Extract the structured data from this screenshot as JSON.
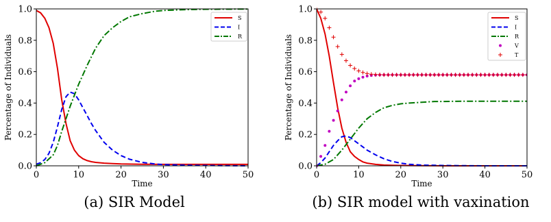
{
  "chart_data": [
    {
      "type": "line",
      "caption": "(a) SIR Model",
      "xlabel": "Time",
      "ylabel": "Percentage of Individuals",
      "xlim": [
        0,
        50
      ],
      "ylim": [
        0,
        1
      ],
      "xticks": [
        "0",
        "10",
        "20",
        "30",
        "40",
        "50"
      ],
      "yticks": [
        "0.0",
        "0.2",
        "0.4",
        "0.6",
        "0.8",
        "1.0"
      ],
      "legend_position": "top-right",
      "series": [
        {
          "name": "S",
          "color": "#e00000",
          "style": "solid",
          "x": [
            0,
            1,
            2,
            3,
            4,
            5,
            6,
            7,
            8,
            9,
            10,
            11,
            12,
            13,
            14,
            16,
            18,
            20,
            25,
            30,
            40,
            50
          ],
          "y": [
            0.99,
            0.975,
            0.94,
            0.88,
            0.78,
            0.62,
            0.42,
            0.27,
            0.16,
            0.1,
            0.065,
            0.045,
            0.033,
            0.026,
            0.022,
            0.017,
            0.014,
            0.012,
            0.01,
            0.009,
            0.009,
            0.009
          ]
        },
        {
          "name": "I",
          "color": "#0000ee",
          "style": "dashed",
          "x": [
            0,
            1,
            2,
            3,
            4,
            5,
            6,
            7,
            8,
            9,
            10,
            11,
            12,
            13,
            14,
            16,
            18,
            20,
            22,
            25,
            28,
            30,
            35,
            40,
            50
          ],
          "y": [
            0.01,
            0.02,
            0.04,
            0.08,
            0.15,
            0.25,
            0.36,
            0.44,
            0.47,
            0.46,
            0.42,
            0.37,
            0.32,
            0.27,
            0.225,
            0.15,
            0.1,
            0.065,
            0.042,
            0.022,
            0.012,
            0.008,
            0.004,
            0.002,
            0.0
          ]
        },
        {
          "name": "R",
          "color": "#007700",
          "style": "dashdot",
          "x": [
            0,
            2,
            4,
            5,
            6,
            7,
            8,
            9,
            10,
            12,
            14,
            16,
            18,
            20,
            22,
            25,
            28,
            30,
            35,
            40,
            50
          ],
          "y": [
            0.0,
            0.02,
            0.07,
            0.13,
            0.22,
            0.3,
            0.38,
            0.45,
            0.52,
            0.64,
            0.75,
            0.83,
            0.88,
            0.92,
            0.95,
            0.97,
            0.985,
            0.99,
            0.995,
            0.998,
            0.999
          ]
        }
      ]
    },
    {
      "type": "line",
      "caption": "(b) SIR model with vaxination",
      "xlabel": "Time",
      "ylabel": "Percentage of Individuals",
      "xlim": [
        0,
        50
      ],
      "ylim": [
        0,
        1
      ],
      "xticks": [
        "0",
        "10",
        "20",
        "30",
        "40",
        "50"
      ],
      "yticks": [
        "0.0",
        "0.2",
        "0.4",
        "0.6",
        "0.8",
        "1.0"
      ],
      "legend_position": "top-right",
      "series": [
        {
          "name": "S",
          "color": "#e00000",
          "style": "solid",
          "x": [
            0,
            1,
            2,
            3,
            4,
            5,
            6,
            7,
            8,
            9,
            10,
            11,
            12,
            14,
            16,
            18,
            20,
            25,
            30,
            40,
            50
          ],
          "y": [
            1.0,
            0.94,
            0.84,
            0.7,
            0.53,
            0.37,
            0.24,
            0.15,
            0.09,
            0.06,
            0.04,
            0.025,
            0.017,
            0.009,
            0.005,
            0.003,
            0.002,
            0.001,
            0.0,
            0.0,
            0.0
          ]
        },
        {
          "name": "I",
          "color": "#0000ee",
          "style": "dashed",
          "x": [
            0,
            1,
            2,
            3,
            4,
            5,
            6,
            7,
            8,
            9,
            10,
            12,
            14,
            16,
            18,
            20,
            22,
            25,
            30,
            40,
            50
          ],
          "y": [
            0.0,
            0.02,
            0.05,
            0.09,
            0.13,
            0.16,
            0.185,
            0.19,
            0.18,
            0.16,
            0.14,
            0.1,
            0.07,
            0.045,
            0.028,
            0.017,
            0.01,
            0.005,
            0.002,
            0.0,
            0.0
          ]
        },
        {
          "name": "R",
          "color": "#007700",
          "style": "dashdot",
          "x": [
            0,
            2,
            4,
            6,
            8,
            10,
            12,
            14,
            16,
            18,
            20,
            22,
            25,
            28,
            30,
            35,
            40,
            50
          ],
          "y": [
            0.0,
            0.01,
            0.04,
            0.1,
            0.17,
            0.24,
            0.3,
            0.34,
            0.37,
            0.385,
            0.395,
            0.4,
            0.405,
            0.41,
            0.41,
            0.412,
            0.412,
            0.412
          ]
        },
        {
          "name": "V",
          "color": "#c000c0",
          "style": "dots",
          "x": [
            0,
            1,
            2,
            3,
            4,
            5,
            6,
            7,
            8,
            9,
            10,
            11,
            12,
            13,
            14,
            15,
            16,
            17,
            18,
            19,
            20,
            21,
            22,
            23,
            24,
            25,
            26,
            27,
            28,
            29,
            30,
            31,
            32,
            33,
            34,
            35,
            36,
            37,
            38,
            39,
            40,
            41,
            42,
            43,
            44,
            45,
            46,
            47,
            48,
            49,
            50
          ],
          "y": [
            0.0,
            0.06,
            0.13,
            0.22,
            0.29,
            0.35,
            0.42,
            0.47,
            0.51,
            0.54,
            0.555,
            0.565,
            0.572,
            0.576,
            0.578,
            0.579,
            0.58,
            0.58,
            0.58,
            0.58,
            0.58,
            0.58,
            0.58,
            0.58,
            0.58,
            0.58,
            0.58,
            0.58,
            0.58,
            0.58,
            0.58,
            0.58,
            0.58,
            0.58,
            0.58,
            0.58,
            0.58,
            0.58,
            0.58,
            0.58,
            0.58,
            0.58,
            0.58,
            0.58,
            0.58,
            0.58,
            0.58,
            0.58,
            0.58,
            0.58,
            0.58
          ]
        },
        {
          "name": "T",
          "color": "#e00000",
          "style": "plus",
          "x": [
            0,
            1,
            2,
            3,
            4,
            5,
            6,
            7,
            8,
            9,
            10,
            11,
            12,
            13,
            14,
            15,
            16,
            17,
            18,
            19,
            20,
            21,
            22,
            23,
            24,
            25,
            26,
            27,
            28,
            29,
            30,
            31,
            32,
            33,
            34,
            35,
            36,
            37,
            38,
            39,
            40,
            41,
            42,
            43,
            44,
            45,
            46,
            47,
            48,
            49,
            50
          ],
          "y": [
            1.0,
            0.98,
            0.94,
            0.88,
            0.82,
            0.76,
            0.71,
            0.67,
            0.64,
            0.62,
            0.605,
            0.595,
            0.588,
            0.584,
            0.582,
            0.581,
            0.58,
            0.58,
            0.58,
            0.58,
            0.58,
            0.58,
            0.58,
            0.58,
            0.58,
            0.58,
            0.58,
            0.58,
            0.58,
            0.58,
            0.58,
            0.58,
            0.58,
            0.58,
            0.58,
            0.58,
            0.58,
            0.58,
            0.58,
            0.58,
            0.58,
            0.58,
            0.58,
            0.58,
            0.58,
            0.58,
            0.58,
            0.58,
            0.58,
            0.58,
            0.58
          ]
        }
      ]
    }
  ]
}
